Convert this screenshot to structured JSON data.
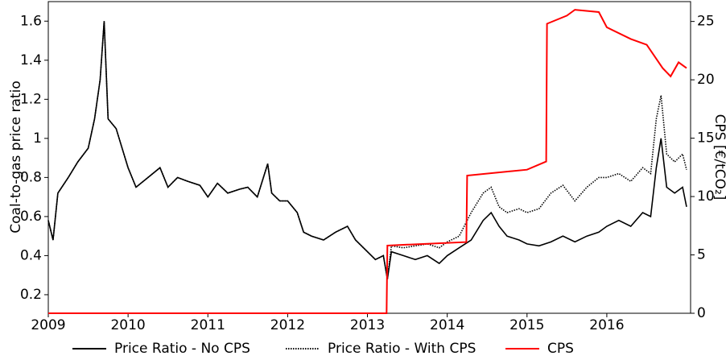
{
  "chart_data": {
    "type": "line",
    "y_label": "Coal-to-gas price ratio",
    "y2_label": "CPS [€/tCO₂]",
    "x": [
      2009.0,
      2009.06,
      2009.12,
      2009.25,
      2009.37,
      2009.5,
      2009.58,
      2009.65,
      2009.7,
      2009.75,
      2009.85,
      2010.0,
      2010.1,
      2010.25,
      2010.4,
      2010.5,
      2010.62,
      2010.75,
      2010.9,
      2011.0,
      2011.12,
      2011.25,
      2011.4,
      2011.5,
      2011.62,
      2011.75,
      2011.8,
      2011.9,
      2012.0,
      2012.12,
      2012.2,
      2012.3,
      2012.45,
      2012.6,
      2012.75,
      2012.85,
      2013.0,
      2013.1,
      2013.2,
      2013.25,
      2013.3,
      2013.45,
      2013.6,
      2013.75,
      2013.9,
      2014.0,
      2014.15,
      2014.3,
      2014.45,
      2014.55,
      2014.65,
      2014.75,
      2014.9,
      2015.0,
      2015.15,
      2015.3,
      2015.45,
      2015.6,
      2015.75,
      2015.9,
      2016.0,
      2016.15,
      2016.3,
      2016.45,
      2016.55,
      2016.62,
      2016.68,
      2016.75,
      2016.85,
      2016.95,
      2017.0
    ],
    "series": [
      {
        "name": "Price Ratio - No CPS",
        "color": "#000000",
        "style": "solid",
        "values": [
          0.58,
          0.48,
          0.72,
          0.8,
          0.88,
          0.95,
          1.1,
          1.3,
          1.6,
          1.1,
          1.05,
          0.85,
          0.75,
          0.8,
          0.85,
          0.75,
          0.8,
          0.78,
          0.76,
          0.7,
          0.77,
          0.72,
          0.74,
          0.75,
          0.7,
          0.87,
          0.72,
          0.68,
          0.68,
          0.62,
          0.52,
          0.5,
          0.48,
          0.52,
          0.55,
          0.48,
          0.42,
          0.38,
          0.4,
          0.28,
          0.42,
          0.4,
          0.38,
          0.4,
          0.36,
          0.4,
          0.44,
          0.48,
          0.58,
          0.62,
          0.55,
          0.5,
          0.48,
          0.46,
          0.45,
          0.47,
          0.5,
          0.47,
          0.5,
          0.52,
          0.55,
          0.58,
          0.55,
          0.62,
          0.6,
          0.85,
          1.0,
          0.75,
          0.72,
          0.75,
          0.65
        ]
      },
      {
        "name": "Price Ratio - With CPS",
        "color": "#000000",
        "style": "dotted",
        "values": [
          0.58,
          0.48,
          0.72,
          0.8,
          0.88,
          0.95,
          1.1,
          1.3,
          1.6,
          1.1,
          1.05,
          0.85,
          0.75,
          0.8,
          0.85,
          0.75,
          0.8,
          0.78,
          0.76,
          0.7,
          0.77,
          0.72,
          0.74,
          0.75,
          0.7,
          0.87,
          0.72,
          0.68,
          0.68,
          0.62,
          0.52,
          0.5,
          0.48,
          0.52,
          0.55,
          0.48,
          0.42,
          0.38,
          0.4,
          0.28,
          0.45,
          0.44,
          0.45,
          0.46,
          0.44,
          0.47,
          0.5,
          0.62,
          0.72,
          0.75,
          0.65,
          0.62,
          0.64,
          0.62,
          0.64,
          0.72,
          0.76,
          0.68,
          0.75,
          0.8,
          0.8,
          0.82,
          0.78,
          0.85,
          0.82,
          1.1,
          1.22,
          0.92,
          0.88,
          0.92,
          0.84
        ]
      },
      {
        "name": "CPS",
        "color": "#ff0000",
        "style": "solid",
        "axis": "y2",
        "x": [
          2009.0,
          2013.24,
          2013.25,
          2014.24,
          2014.25,
          2015.0,
          2015.24,
          2015.25,
          2015.5,
          2015.6,
          2015.9,
          2016.0,
          2016.3,
          2016.5,
          2016.7,
          2016.8,
          2016.9,
          2017.0
        ],
        "values": [
          0,
          0,
          5.8,
          6.1,
          11.8,
          12.3,
          13,
          24.8,
          25.5,
          26,
          25.8,
          24.5,
          23.5,
          23,
          21,
          20.3,
          21.5,
          21
        ]
      }
    ],
    "xlim": [
      2009,
      2017.05
    ],
    "xticks": [
      2009,
      2010,
      2011,
      2012,
      2013,
      2014,
      2015,
      2016
    ],
    "ylim": [
      0.105,
      1.7
    ],
    "yticks": [
      0.2,
      0.4,
      0.6,
      0.8,
      1.0,
      1.2,
      1.4,
      1.6
    ],
    "y2lim": [
      0,
      26.7
    ],
    "y2ticks": [
      0,
      5,
      10,
      15,
      20,
      25
    ],
    "legend": "bottom"
  }
}
